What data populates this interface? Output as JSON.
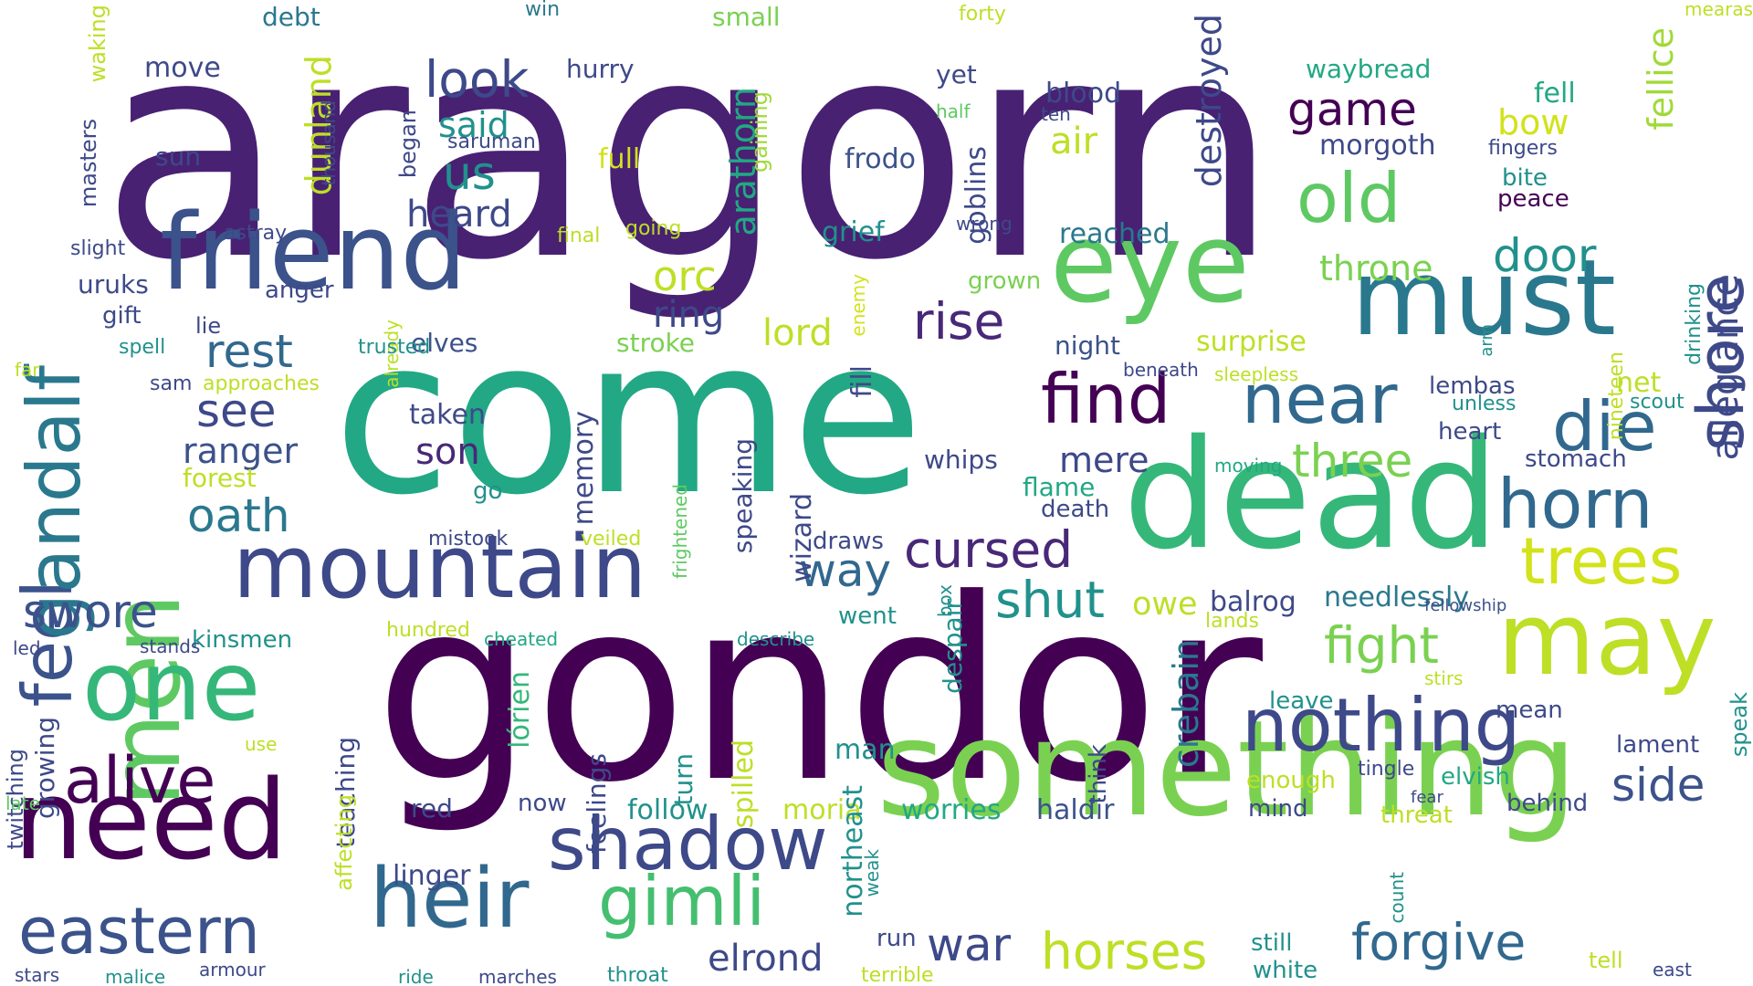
{
  "words": [
    {
      "text": "aragorn",
      "color": "#482173"
    },
    {
      "text": "come",
      "color": "#22a884"
    },
    {
      "text": "gondor",
      "color": "#440154"
    },
    {
      "text": "something",
      "color": "#7ad151"
    },
    {
      "text": "dead",
      "color": "#35b779"
    },
    {
      "text": "friend",
      "color": "#3b528b"
    },
    {
      "text": "eye",
      "color": "#5ec962"
    },
    {
      "text": "must",
      "color": "#2a788e"
    },
    {
      "text": "need",
      "color": "#440154"
    },
    {
      "text": "mountain",
      "color": "#3e4989"
    },
    {
      "text": "heir",
      "color": "#31688e"
    },
    {
      "text": "may",
      "color": "#bddf26"
    },
    {
      "text": "men",
      "color": "#5ec962"
    },
    {
      "text": "one",
      "color": "#35b779"
    },
    {
      "text": "eastern",
      "color": "#3b528b"
    },
    {
      "text": "nothing",
      "color": "#3e4989"
    },
    {
      "text": "shadow",
      "color": "#3e4989"
    },
    {
      "text": "gimli",
      "color": "#44bf70"
    },
    {
      "text": "find",
      "color": "#440154"
    },
    {
      "text": "near",
      "color": "#31688e"
    },
    {
      "text": "horn",
      "color": "#31688e"
    },
    {
      "text": "die",
      "color": "#31688e"
    },
    {
      "text": "feel",
      "color": "#3b528b"
    },
    {
      "text": "gandalf",
      "color": "#2a788e"
    },
    {
      "text": "shore",
      "color": "#3e4989"
    },
    {
      "text": "alive",
      "color": "#440154"
    },
    {
      "text": "old",
      "color": "#5ec962"
    },
    {
      "text": "trees",
      "color": "#d2e21b"
    },
    {
      "text": "fight",
      "color": "#7ad151"
    },
    {
      "text": "forgive",
      "color": "#31688e"
    },
    {
      "text": "horses",
      "color": "#bddf26"
    },
    {
      "text": "cursed",
      "color": "#482878"
    },
    {
      "text": "shut",
      "color": "#21918c"
    },
    {
      "text": "war",
      "color": "#3e4989"
    },
    {
      "text": "swore",
      "color": "#3b528b"
    },
    {
      "text": "rise",
      "color": "#482878"
    },
    {
      "text": "rest",
      "color": "#31688e"
    },
    {
      "text": "oath",
      "color": "#2a788e"
    },
    {
      "text": "door",
      "color": "#21918c"
    },
    {
      "text": "game",
      "color": "#440154"
    },
    {
      "text": "look",
      "color": "#3e4989"
    },
    {
      "text": "us",
      "color": "#21918c"
    },
    {
      "text": "see",
      "color": "#3e4989"
    },
    {
      "text": "side",
      "color": "#3b528b"
    },
    {
      "text": "three",
      "color": "#7ad151"
    },
    {
      "text": "way",
      "color": "#31688e"
    },
    {
      "text": "elrond",
      "color": "#3e4989"
    },
    {
      "text": "orc",
      "color": "#bddf26"
    },
    {
      "text": "ring",
      "color": "#3e4989"
    },
    {
      "text": "lord",
      "color": "#bddf26"
    },
    {
      "text": "heard",
      "color": "#3e4989"
    },
    {
      "text": "dunland",
      "color": "#bddf26"
    },
    {
      "text": "arathorn",
      "color": "#22a884"
    },
    {
      "text": "destroyed",
      "color": "#3e4989"
    },
    {
      "text": "fellice",
      "color": "#a0da39"
    },
    {
      "text": "allegiance",
      "color": "#3e4989"
    },
    {
      "text": "air",
      "color": "#bddf26"
    },
    {
      "text": "throne",
      "color": "#7ad151"
    },
    {
      "text": "son",
      "color": "#482878"
    },
    {
      "text": "ranger",
      "color": "#3b528b"
    },
    {
      "text": "mere",
      "color": "#3e4989"
    },
    {
      "text": "crebain",
      "color": "#2a788e"
    },
    {
      "text": "owe",
      "color": "#bddf26"
    },
    {
      "text": "balrog",
      "color": "#3e4989"
    },
    {
      "text": "needlessly",
      "color": "#2a788e"
    },
    {
      "text": "lórien",
      "color": "#35b779"
    },
    {
      "text": "follow",
      "color": "#21918c"
    },
    {
      "text": "moria",
      "color": "#bddf26"
    },
    {
      "text": "worries",
      "color": "#22a884"
    },
    {
      "text": "haldir",
      "color": "#3b528b"
    },
    {
      "text": "linger",
      "color": "#3e4989"
    },
    {
      "text": "bow",
      "color": "#d2e21b"
    },
    {
      "text": "fell",
      "color": "#22a884"
    },
    {
      "text": "morgoth",
      "color": "#3e4989"
    },
    {
      "text": "waybread",
      "color": "#22a884"
    },
    {
      "text": "frodo",
      "color": "#3b528b"
    },
    {
      "text": "blood",
      "color": "#3e4989"
    },
    {
      "text": "grief",
      "color": "#21918c"
    },
    {
      "text": "reached",
      "color": "#2a788e"
    },
    {
      "text": "goblins",
      "color": "#3e4989"
    },
    {
      "text": "surprise",
      "color": "#bddf26"
    },
    {
      "text": "night",
      "color": "#3b528b"
    },
    {
      "text": "elves",
      "color": "#3b528b"
    },
    {
      "text": "stroke",
      "color": "#7ad151"
    },
    {
      "text": "lembas",
      "color": "#3e4989"
    },
    {
      "text": "heart",
      "color": "#3e4989"
    },
    {
      "text": "stomach",
      "color": "#3e4989"
    },
    {
      "text": "net",
      "color": "#bddf26"
    },
    {
      "text": "scout",
      "color": "#21918c"
    },
    {
      "text": "drinking",
      "color": "#21918c"
    },
    {
      "text": "nineteen",
      "color": "#bddf26"
    },
    {
      "text": "unless",
      "color": "#21918c"
    },
    {
      "text": "fingers",
      "color": "#3e4989"
    },
    {
      "text": "peace",
      "color": "#440154"
    },
    {
      "text": "bite",
      "color": "#21918c"
    },
    {
      "text": "mearas",
      "color": "#bddf26"
    },
    {
      "text": "forty",
      "color": "#bddf26"
    },
    {
      "text": "small",
      "color": "#7ad151"
    },
    {
      "text": "win",
      "color": "#2a788e"
    },
    {
      "text": "debt",
      "color": "#2a788e"
    },
    {
      "text": "waking",
      "color": "#bddf26"
    },
    {
      "text": "move",
      "color": "#3e4989"
    },
    {
      "text": "hurry",
      "color": "#3e4989"
    },
    {
      "text": "yet",
      "color": "#3e4989"
    },
    {
      "text": "half",
      "color": "#5ec962"
    },
    {
      "text": "ten",
      "color": "#3e4989"
    },
    {
      "text": "said",
      "color": "#21918c"
    },
    {
      "text": "full",
      "color": "#d2e21b"
    },
    {
      "text": "sun",
      "color": "#3e4989"
    },
    {
      "text": "masters",
      "color": "#3e4989"
    },
    {
      "text": "thousand",
      "color": "#3e4989"
    },
    {
      "text": "began",
      "color": "#3e4989"
    },
    {
      "text": "saruman",
      "color": "#3e4989"
    },
    {
      "text": "gaining",
      "color": "#a0da39"
    },
    {
      "text": "astray",
      "color": "#3e4989"
    },
    {
      "text": "slight",
      "color": "#3e4989"
    },
    {
      "text": "final",
      "color": "#bddf26"
    },
    {
      "text": "going",
      "color": "#bddf26"
    },
    {
      "text": "wrong",
      "color": "#3e4989"
    },
    {
      "text": "enemy",
      "color": "#d2e21b"
    },
    {
      "text": "grown",
      "color": "#7ad151"
    },
    {
      "text": "uruks",
      "color": "#3e4989"
    },
    {
      "text": "anger",
      "color": "#3e4989"
    },
    {
      "text": "gift",
      "color": "#3e4989"
    },
    {
      "text": "lie",
      "color": "#3e4989"
    },
    {
      "text": "already",
      "color": "#bddf26"
    },
    {
      "text": "spell",
      "color": "#21918c"
    },
    {
      "text": "trusted",
      "color": "#21918c"
    },
    {
      "text": "far",
      "color": "#bddf26"
    },
    {
      "text": "sam",
      "color": "#3e4989"
    },
    {
      "text": "approaches",
      "color": "#bddf26"
    },
    {
      "text": "fill",
      "color": "#3e4989"
    },
    {
      "text": "beneath",
      "color": "#3e4989"
    },
    {
      "text": "sleepless",
      "color": "#bddf26"
    },
    {
      "text": "arm",
      "color": "#21918c"
    },
    {
      "text": "taken",
      "color": "#3e4989"
    },
    {
      "text": "forest",
      "color": "#bddf26"
    },
    {
      "text": "go",
      "color": "#21918c"
    },
    {
      "text": "memory",
      "color": "#3e4989"
    },
    {
      "text": "frightened",
      "color": "#5ec962"
    },
    {
      "text": "speaking",
      "color": "#3e4989"
    },
    {
      "text": "wizard",
      "color": "#3e4989"
    },
    {
      "text": "whips",
      "color": "#3e4989"
    },
    {
      "text": "flame",
      "color": "#22a884"
    },
    {
      "text": "moving",
      "color": "#22a884"
    },
    {
      "text": "death",
      "color": "#3e4989"
    },
    {
      "text": "mistook",
      "color": "#3e4989"
    },
    {
      "text": "veiled",
      "color": "#bddf26"
    },
    {
      "text": "draws",
      "color": "#3e4989"
    },
    {
      "text": "box",
      "color": "#21918c"
    },
    {
      "text": "went",
      "color": "#21918c"
    },
    {
      "text": "despair",
      "color": "#21918c"
    },
    {
      "text": "lands",
      "color": "#bddf26"
    },
    {
      "text": "fellowship",
      "color": "#3b528b"
    },
    {
      "text": "kinsmen",
      "color": "#21918c"
    },
    {
      "text": "hundred",
      "color": "#bddf26"
    },
    {
      "text": "cheated",
      "color": "#22a884"
    },
    {
      "text": "describe",
      "color": "#21918c"
    },
    {
      "text": "led",
      "color": "#3e4989"
    },
    {
      "text": "stands",
      "color": "#3e4989"
    },
    {
      "text": "growing",
      "color": "#3e4989"
    },
    {
      "text": "teaching",
      "color": "#3e4989"
    },
    {
      "text": "turn",
      "color": "#21918c"
    },
    {
      "text": "feelings",
      "color": "#3e4989"
    },
    {
      "text": "spilled",
      "color": "#bddf26"
    },
    {
      "text": "man",
      "color": "#21918c"
    },
    {
      "text": "northeast",
      "color": "#21918c"
    },
    {
      "text": "think",
      "color": "#3e4989"
    },
    {
      "text": "stirs",
      "color": "#bddf26"
    },
    {
      "text": "leave",
      "color": "#21918c"
    },
    {
      "text": "mean",
      "color": "#3e4989"
    },
    {
      "text": "lament",
      "color": "#3e4989"
    },
    {
      "text": "speak",
      "color": "#21918c"
    },
    {
      "text": "enough",
      "color": "#bddf26"
    },
    {
      "text": "tingle",
      "color": "#3e4989"
    },
    {
      "text": "elvish",
      "color": "#22a884"
    },
    {
      "text": "fear",
      "color": "#3e4989"
    },
    {
      "text": "threat",
      "color": "#bddf26"
    },
    {
      "text": "behind",
      "color": "#3e4989"
    },
    {
      "text": "twitching",
      "color": "#3e4989"
    },
    {
      "text": "use",
      "color": "#bddf26"
    },
    {
      "text": "late",
      "color": "#5ec962"
    },
    {
      "text": "red",
      "color": "#3e4989"
    },
    {
      "text": "now",
      "color": "#3e4989"
    },
    {
      "text": "mind",
      "color": "#3e4989"
    },
    {
      "text": "affecting",
      "color": "#bddf26"
    },
    {
      "text": "weak",
      "color": "#21918c"
    },
    {
      "text": "count",
      "color": "#21918c"
    },
    {
      "text": "run",
      "color": "#3e4989"
    },
    {
      "text": "still",
      "color": "#21918c"
    },
    {
      "text": "white",
      "color": "#21918c"
    },
    {
      "text": "tell",
      "color": "#bddf26"
    },
    {
      "text": "east",
      "color": "#3e4989"
    },
    {
      "text": "stars",
      "color": "#3e4989"
    },
    {
      "text": "malice",
      "color": "#21918c"
    },
    {
      "text": "armour",
      "color": "#3e4989"
    },
    {
      "text": "ride",
      "color": "#21918c"
    },
    {
      "text": "marches",
      "color": "#3e4989"
    },
    {
      "text": "throat",
      "color": "#21918c"
    },
    {
      "text": "terrible",
      "color": "#bddf26"
    }
  ]
}
